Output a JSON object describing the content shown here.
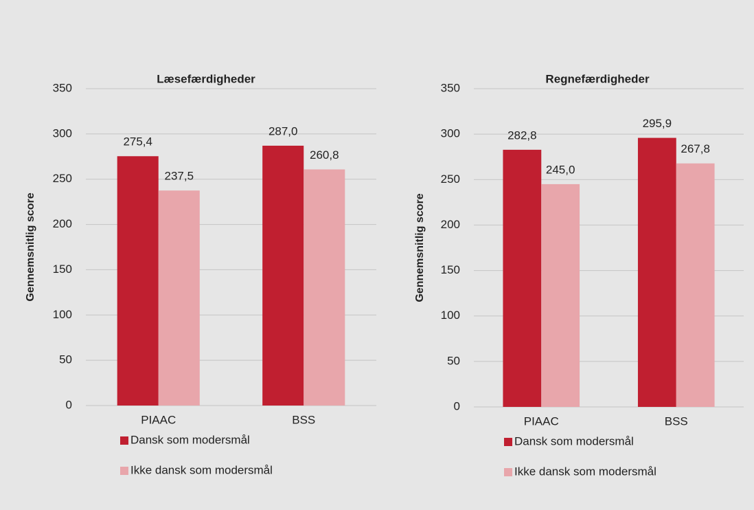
{
  "chart_data": [
    {
      "type": "bar",
      "title": "Læsefærdigheder",
      "ylabel": "Gennemsnitlig score",
      "categories": [
        "PIAAC",
        "BSS"
      ],
      "series": [
        {
          "name": "Dansk som modersmål",
          "color": "#c01f30",
          "values": [
            275.4,
            287.0
          ],
          "value_labels": [
            "275,4",
            "287,0"
          ]
        },
        {
          "name": "Ikke dansk som modersmål",
          "color": "#e8a6ab",
          "values": [
            237.5,
            260.8
          ],
          "value_labels": [
            "237,5",
            "260,8"
          ]
        }
      ],
      "ylim": [
        0,
        350
      ],
      "yticks": [
        0,
        50,
        100,
        150,
        200,
        250,
        300,
        350
      ],
      "grid": true
    },
    {
      "type": "bar",
      "title": "Regnefærdigheder",
      "ylabel": "Gennemsnitlig score",
      "categories": [
        "PIAAC",
        "BSS"
      ],
      "series": [
        {
          "name": "Dansk som modersmål",
          "color": "#c01f30",
          "values": [
            282.8,
            295.9
          ],
          "value_labels": [
            "282,8",
            "295,9"
          ]
        },
        {
          "name": "Ikke dansk som modersmål",
          "color": "#e8a6ab",
          "values": [
            245.0,
            267.8
          ],
          "value_labels": [
            "245,0",
            "267,8"
          ]
        }
      ],
      "ylim": [
        0,
        350
      ],
      "yticks": [
        0,
        50,
        100,
        150,
        200,
        250,
        300,
        350
      ],
      "grid": true
    }
  ]
}
